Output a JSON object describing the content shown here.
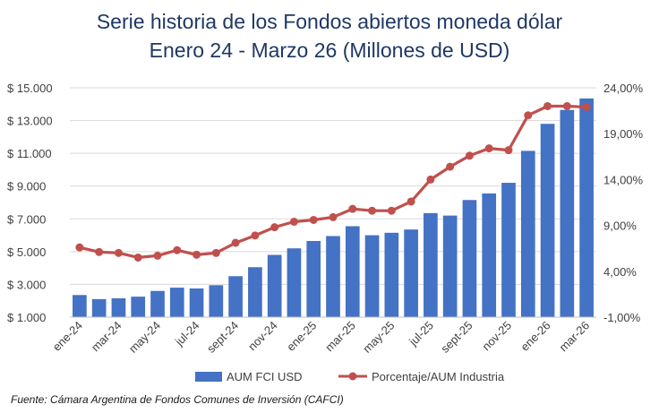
{
  "chart_data": {
    "type": "bar",
    "title": "Serie historia de los Fondos abiertos moneda dólar",
    "subtitle": "Enero 24 - Marzo 26 (Millones de USD)",
    "source": "Fuente: Cámara Argentina de Fondos Comunes de Inversión (CAFCI)",
    "categories": [
      "ene-24",
      "feb-24",
      "mar-24",
      "abr-24",
      "may-24",
      "jun-24",
      "jul-24",
      "ago-24",
      "sept-24",
      "oct-24",
      "nov-24",
      "dic-24",
      "ene-25",
      "feb-25",
      "mar-25",
      "abr-25",
      "may-25",
      "jun-25",
      "jul-25",
      "ago-25",
      "sept-25",
      "oct-25",
      "nov-25",
      "dic-25",
      "ene-26",
      "feb-26",
      "mar-26"
    ],
    "x_tick_labels": [
      "ene-24",
      "mar-24",
      "may-24",
      "jul-24",
      "sept-24",
      "nov-24",
      "ene-25",
      "mar-25",
      "may-25",
      "jul-25",
      "sept-25",
      "nov-25",
      "ene-26",
      "mar-26"
    ],
    "series": [
      {
        "name": "AUM FCI USD",
        "type": "bar",
        "axis": "left",
        "color": "#4472c4",
        "values": [
          2350,
          2100,
          2150,
          2250,
          2600,
          2800,
          2750,
          2950,
          3500,
          4050,
          4800,
          5200,
          5650,
          5950,
          6550,
          6000,
          6150,
          6350,
          7350,
          7200,
          8150,
          8550,
          9200,
          11150,
          12800,
          13650,
          14350
        ]
      },
      {
        "name": "Porcentaje/AUM Industria",
        "type": "line",
        "axis": "right",
        "color": "#c0504d",
        "values": [
          6.6,
          6.1,
          6.0,
          5.5,
          5.7,
          6.3,
          5.8,
          6.0,
          7.1,
          7.9,
          8.8,
          9.4,
          9.6,
          9.9,
          10.8,
          10.6,
          10.6,
          11.6,
          14.0,
          15.4,
          16.6,
          17.4,
          17.2,
          21.0,
          22.0,
          22.0,
          21.9
        ]
      }
    ],
    "ylim_left": [
      1000,
      15000
    ],
    "y_ticks_left": [
      1000,
      3000,
      5000,
      7000,
      9000,
      11000,
      13000,
      15000
    ],
    "y_tick_labels_left": [
      "$ 1.000",
      "$ 3.000",
      "$ 5.000",
      "$ 7.000",
      "$ 9.000",
      "$ 11.000",
      "$ 13.000",
      "$ 15.000"
    ],
    "ylim_right": [
      -1,
      24
    ],
    "y_ticks_right": [
      -1,
      4,
      9,
      14,
      19,
      24
    ],
    "y_tick_labels_right": [
      "-1,00%",
      "4,00%",
      "9,00%",
      "14,00%",
      "19,00%",
      "24,00%"
    ],
    "grid": true,
    "legend_position": "bottom",
    "legend": [
      "AUM FCI USD",
      "Porcentaje/AUM Industria"
    ]
  }
}
